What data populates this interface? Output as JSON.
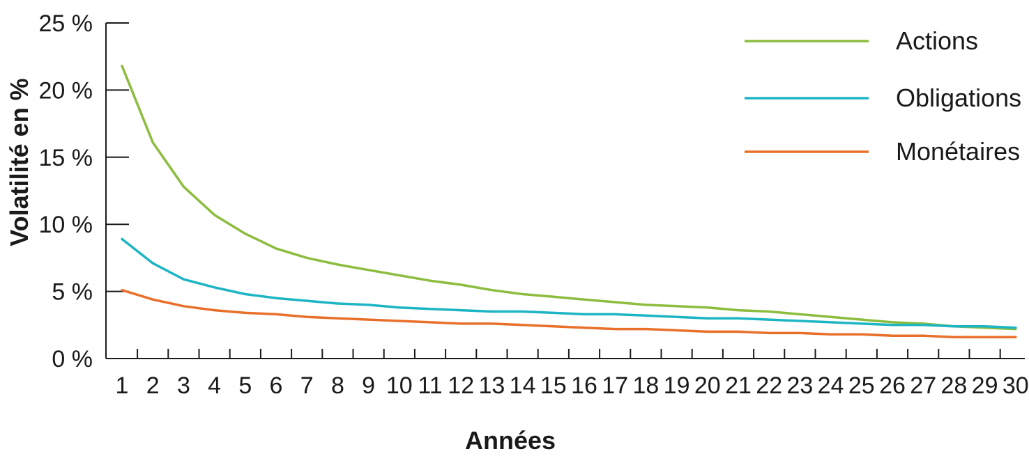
{
  "chart_data": {
    "type": "line",
    "xlabel": "Années",
    "ylabel": "Volatilité en %",
    "x": [
      1,
      2,
      3,
      4,
      5,
      6,
      7,
      8,
      9,
      10,
      11,
      12,
      13,
      14,
      15,
      16,
      17,
      18,
      19,
      20,
      21,
      22,
      23,
      24,
      25,
      26,
      27,
      28,
      29,
      30
    ],
    "y_ticks": [
      0,
      5,
      10,
      15,
      20,
      25
    ],
    "y_tick_labels": [
      "0 %",
      "5 %",
      "10 %",
      "15 %",
      "20 %",
      "25 %"
    ],
    "ylim": [
      0,
      25
    ],
    "grid": false,
    "legend_position": "top-right",
    "series": [
      {
        "name": "Actions",
        "color": "#8cbd3f",
        "values": [
          21.8,
          16.1,
          12.8,
          10.7,
          9.3,
          8.2,
          7.5,
          7.0,
          6.6,
          6.2,
          5.8,
          5.5,
          5.1,
          4.8,
          4.6,
          4.4,
          4.2,
          4.0,
          3.9,
          3.8,
          3.6,
          3.5,
          3.3,
          3.1,
          2.9,
          2.7,
          2.6,
          2.4,
          2.3,
          2.2
        ]
      },
      {
        "name": "Obligations",
        "color": "#1db5c4",
        "values": [
          8.9,
          7.1,
          5.9,
          5.3,
          4.8,
          4.5,
          4.3,
          4.1,
          4.0,
          3.8,
          3.7,
          3.6,
          3.5,
          3.5,
          3.4,
          3.3,
          3.3,
          3.2,
          3.1,
          3.0,
          3.0,
          2.9,
          2.8,
          2.7,
          2.6,
          2.5,
          2.5,
          2.4,
          2.4,
          2.3
        ]
      },
      {
        "name": "Monétaires",
        "color": "#e8702a",
        "values": [
          5.1,
          4.4,
          3.9,
          3.6,
          3.4,
          3.3,
          3.1,
          3.0,
          2.9,
          2.8,
          2.7,
          2.6,
          2.6,
          2.5,
          2.4,
          2.3,
          2.2,
          2.2,
          2.1,
          2.0,
          2.0,
          1.9,
          1.9,
          1.8,
          1.8,
          1.7,
          1.7,
          1.6,
          1.6,
          1.6
        ]
      }
    ]
  }
}
